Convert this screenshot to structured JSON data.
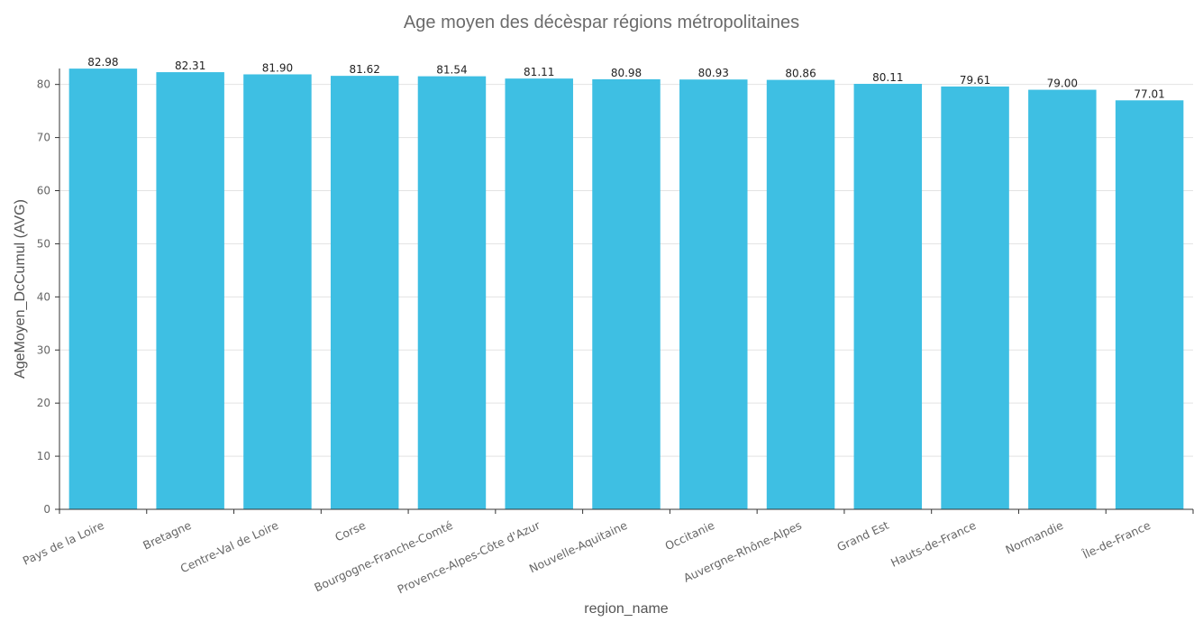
{
  "chart_data": {
    "type": "bar",
    "title": "Age moyen des décèspar régions métropolitaines",
    "xlabel": "region_name",
    "ylabel": "AgeMoyen_DcCumul (AVG)",
    "categories": [
      "Pays de la Loire",
      "Bretagne",
      "Centre-Val de Loire",
      "Corse",
      "Bourgogne-Franche-Comté",
      "Provence-Alpes-Côte d'Azur",
      "Nouvelle-Aquitaine",
      "Occitanie",
      "Auvergne-Rhône-Alpes",
      "Grand Est",
      "Hauts-de-France",
      "Normandie",
      "Île-de-France"
    ],
    "values": [
      82.98,
      82.31,
      81.9,
      81.62,
      81.54,
      81.11,
      80.98,
      80.93,
      80.86,
      80.11,
      79.61,
      79.0,
      77.01
    ],
    "value_labels": [
      "82.98",
      "82.31",
      "81.90",
      "81.62",
      "81.54",
      "81.11",
      "80.98",
      "80.93",
      "80.86",
      "80.11",
      "79.61",
      "79.00",
      "77.01"
    ],
    "yticks": [
      0,
      10,
      20,
      30,
      40,
      50,
      60,
      70,
      80
    ],
    "ylim": [
      0,
      83
    ],
    "grid": true,
    "bar_color": "#3ebfe3"
  }
}
